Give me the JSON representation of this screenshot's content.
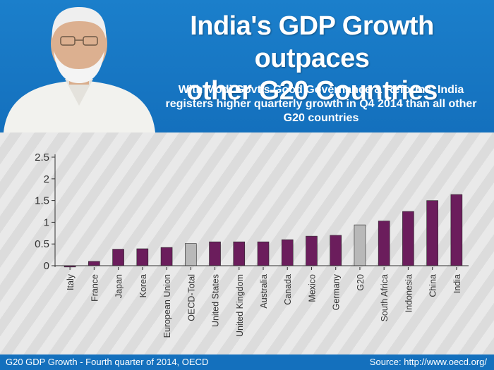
{
  "header": {
    "title_line1": "India's GDP Growth outpaces",
    "title_line2": "other G20 Countries",
    "subtitle": "With Modi Govt's Good Governance & Reforms, India registers higher quarterly growth in Q4 2014 than all other G20 countries",
    "header_color": "#1976c8"
  },
  "footer": {
    "caption": "G20 GDP Growth - Fourth quarter of 2014, OECD",
    "source": "Source: http://www.oecd.org/"
  },
  "chart_data": {
    "type": "bar",
    "title": "",
    "xlabel": "",
    "ylabel": "",
    "ylim": [
      0,
      2.5
    ],
    "yticks": [
      "0",
      "0.5",
      "1",
      "1.5",
      "2",
      "2.5"
    ],
    "categories": [
      "Italy",
      "France",
      "Japan",
      "Korea",
      "European Union",
      "OECD-Total",
      "United States",
      "United Kingdom",
      "Australia",
      "Canada",
      "Mexico",
      "Germany",
      "G20",
      "South Africa",
      "Indonesia",
      "China",
      "India"
    ],
    "values": [
      -0.03,
      0.1,
      0.38,
      0.39,
      0.42,
      0.51,
      0.55,
      0.55,
      0.55,
      0.6,
      0.68,
      0.7,
      0.94,
      1.03,
      1.25,
      1.5,
      1.64
    ],
    "bar_colors": [
      "#6b1d5c",
      "#6b1d5c",
      "#6b1d5c",
      "#6b1d5c",
      "#6b1d5c",
      "#b8b8b8",
      "#6b1d5c",
      "#6b1d5c",
      "#6b1d5c",
      "#6b1d5c",
      "#6b1d5c",
      "#6b1d5c",
      "#b8b8b8",
      "#6b1d5c",
      "#6b1d5c",
      "#6b1d5c",
      "#6b1d5c"
    ],
    "grid": false,
    "legend": "none"
  }
}
